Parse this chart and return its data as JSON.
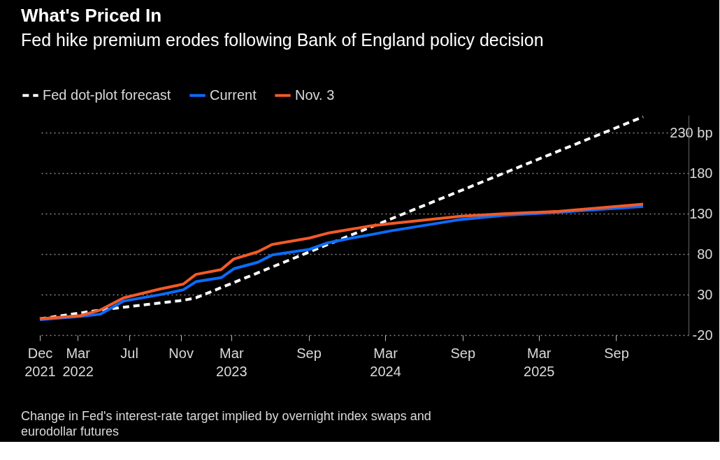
{
  "chart_data": {
    "type": "line",
    "title": "What's Priced In",
    "subtitle": "Fed hike premium erodes following Bank of England policy decision",
    "annotations": [
      "Change in Fed's interest-rate target implied by overnight index swaps and eurodollar futures"
    ],
    "xlim": [
      "2021-12-01",
      "2026-02-20"
    ],
    "xticks": [
      {
        "value": "2021-12-01",
        "label": "Dec 2021"
      },
      {
        "value": "2022-03-01",
        "label": "Mar 2022"
      },
      {
        "value": "2022-07-01",
        "label": "Jul"
      },
      {
        "value": "2022-11-01",
        "label": "Nov"
      },
      {
        "value": "2023-03-01",
        "label": "Mar 2023"
      },
      {
        "value": "2023-09-01",
        "label": "Sep"
      },
      {
        "value": "2024-03-01",
        "label": "Mar 2024"
      },
      {
        "value": "2024-09-01",
        "label": "Sep"
      },
      {
        "value": "2025-03-01",
        "label": "Mar 2025"
      },
      {
        "value": "2025-09-01",
        "label": "Sep"
      }
    ],
    "ylim": [
      -20,
      252
    ],
    "yticks": [
      -20,
      30,
      80,
      130,
      180,
      {
        "value": 230,
        "label": "230 bp"
      }
    ],
    "grid": "y",
    "legend": "top left",
    "marker": "none",
    "series": [
      {
        "name": "Fed dot-plot forecast",
        "color": "#ffffff",
        "line_style": "dashed",
        "x": [
          "2021-12-01",
          "2022-04-24",
          "2022-11-07",
          "2022-12-07",
          "2025-11-04"
        ],
        "values": [
          0,
          11,
          23,
          26,
          250
        ]
      },
      {
        "name": "Current",
        "color": "#0a6cff",
        "line_style": "solid",
        "x": [
          "2021-12-01",
          "2022-03-07",
          "2022-04-24",
          "2022-06-18",
          "2022-09-13",
          "2022-11-07",
          "2022-12-07",
          "2023-02-05",
          "2023-03-07",
          "2023-05-03",
          "2023-06-06",
          "2023-09-03",
          "2023-10-16",
          "2023-12-12",
          "2024-01-25",
          "2024-03-15",
          "2024-08-28",
          "2024-12-07",
          "2025-04-18",
          "2025-11-04"
        ],
        "values": [
          -1,
          3,
          6,
          22,
          30,
          36,
          46,
          51,
          62,
          70,
          79,
          86,
          94,
          100,
          104,
          109,
          123,
          128,
          132,
          139
        ]
      },
      {
        "name": "Nov. 3",
        "color": "#f25a28",
        "line_style": "solid",
        "x": [
          "2021-12-01",
          "2022-03-07",
          "2022-04-24",
          "2022-06-18",
          "2022-09-13",
          "2022-11-07",
          "2022-12-07",
          "2023-02-05",
          "2023-03-07",
          "2023-05-03",
          "2023-06-06",
          "2023-09-03",
          "2023-10-16",
          "2023-12-12",
          "2024-01-25",
          "2024-03-15",
          "2024-08-28",
          "2024-12-07",
          "2025-04-18",
          "2025-11-04"
        ],
        "values": [
          0,
          4,
          11,
          26,
          37,
          43,
          55,
          61,
          74,
          83,
          92,
          100,
          106,
          111,
          115,
          118,
          127,
          130,
          133,
          142
        ]
      }
    ]
  }
}
